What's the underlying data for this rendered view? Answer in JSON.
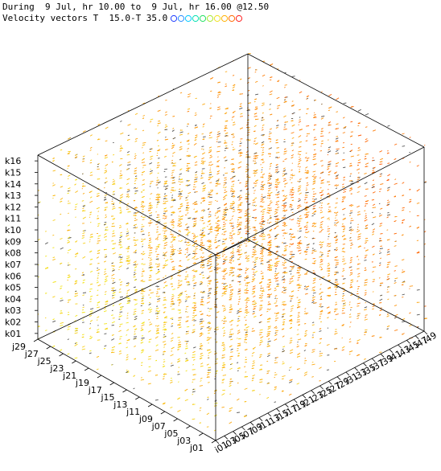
{
  "header": {
    "line1": "During  9 Jul, hr 10.00 to  9 Jul, hr 16.00 @12.50",
    "line2": "Velocity vectors T  15.0-T 35.0"
  },
  "legend": {
    "colors": [
      "#1e3cff",
      "#2a8cff",
      "#00c8ff",
      "#00e0b0",
      "#20e060",
      "#a8e830",
      "#f0e020",
      "#ffb000",
      "#ff6a00",
      "#ff1e1e"
    ]
  },
  "chart_data": {
    "type": "scatter",
    "title": "During  9 Jul, hr 10.00 to  9 Jul, hr 16.00 @12.50",
    "subtitle": "Velocity vectors T  15.0-T 35.0",
    "variable": "T",
    "color_range": [
      15.0,
      35.0
    ],
    "grid": false,
    "axes": {
      "k": {
        "tick_labels": [
          "k01",
          "k02",
          "k03",
          "k04",
          "k05",
          "k06",
          "k07",
          "k08",
          "k09",
          "k10",
          "k11",
          "k12",
          "k13",
          "k14",
          "k15",
          "k16"
        ]
      },
      "j": {
        "tick_labels": [
          "j01",
          "j03",
          "j05",
          "j07",
          "j09",
          "j11",
          "j13",
          "j15",
          "j17",
          "j19",
          "j21",
          "j23",
          "j25",
          "j27",
          "j29"
        ]
      },
      "i": {
        "tick_labels": [
          "i01",
          "i03",
          "i05",
          "i07",
          "i09",
          "i11",
          "i13",
          "i15",
          "i17",
          "i19",
          "i21",
          "i23",
          "i25",
          "i27",
          "i29",
          "i31",
          "i33",
          "i35",
          "i37",
          "i39",
          "i41",
          "i43",
          "i45",
          "i47",
          "i49"
        ]
      }
    }
  }
}
